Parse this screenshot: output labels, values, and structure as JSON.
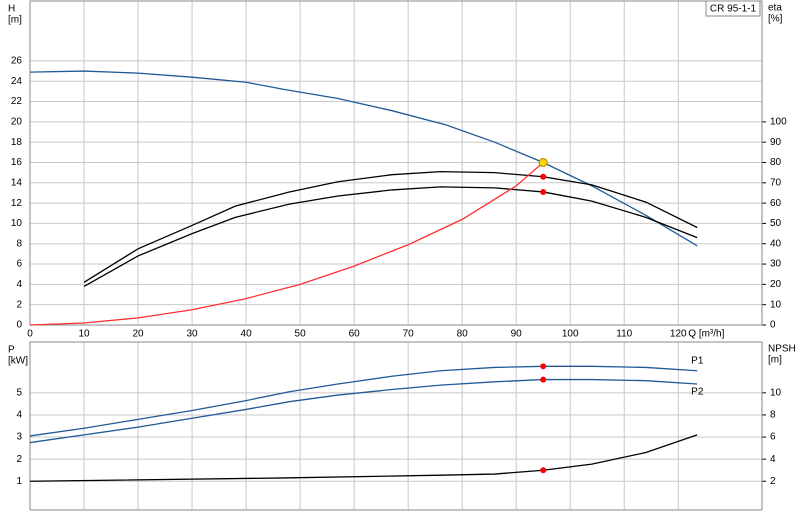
{
  "model": "CR 95-1-1",
  "chart_data": [
    {
      "type": "line",
      "xlabel": "Q [m³/h]",
      "ylabel": "H",
      "yunit": "[m]",
      "y2label": "eta",
      "y2unit": "[%]",
      "xlim": [
        0,
        135.5
      ],
      "ylim": [
        0,
        31.9
      ],
      "y2lim": [
        0,
        159.5
      ],
      "xticks": [
        0,
        10,
        20,
        30,
        40,
        50,
        60,
        70,
        80,
        90,
        100,
        110,
        120
      ],
      "yticks": [
        0,
        2,
        4,
        6,
        8,
        10,
        12,
        14,
        16,
        18,
        20,
        22,
        24,
        26
      ],
      "y2ticks": [
        0,
        10,
        20,
        30,
        40,
        50,
        60,
        70,
        80,
        90,
        100
      ],
      "grid": true,
      "series": [
        {
          "color": "#1f5a96",
          "axis": "y",
          "x": [
            0,
            10,
            20,
            30,
            40,
            47,
            57,
            67,
            77,
            86,
            95,
            104,
            114,
            123.5
          ],
          "values": [
            24.9,
            25.0,
            24.8,
            24.4,
            23.9,
            23.2,
            22.3,
            21.1,
            19.7,
            18.0,
            16.0,
            13.7,
            10.8,
            7.8
          ]
        },
        {
          "color": "#000000",
          "axis": "y2",
          "x": [
            10,
            20,
            30,
            38,
            48,
            57,
            67,
            76,
            86,
            95,
            104,
            114,
            123.5
          ],
          "values": [
            21,
            37.5,
            49,
            58.5,
            65.5,
            70.5,
            74,
            75.5,
            75,
            73,
            69,
            60.5,
            48
          ]
        },
        {
          "color": "#000000",
          "axis": "y2",
          "x": [
            10,
            20,
            30,
            38,
            48,
            57,
            67,
            76,
            86,
            95,
            104,
            114,
            123.5
          ],
          "values": [
            19,
            34,
            45,
            53,
            59.5,
            63.5,
            66.5,
            68,
            67.5,
            65.5,
            61,
            53,
            43
          ]
        },
        {
          "color": "#ff3030",
          "axis": "y",
          "x": [
            0,
            10,
            20,
            30,
            40,
            50,
            60,
            70,
            80,
            90,
            95
          ],
          "values": [
            0,
            0.2,
            0.7,
            1.5,
            2.6,
            4.0,
            5.8,
            7.9,
            10.4,
            13.7,
            16.0
          ]
        }
      ],
      "points": [
        {
          "x": 95,
          "value": 16,
          "axis": "y",
          "color": "#ffd700"
        },
        {
          "x": 95,
          "value": 73,
          "axis": "y2",
          "color": "#ff0000"
        },
        {
          "x": 95,
          "value": 65.5,
          "axis": "y2",
          "color": "#ff0000"
        }
      ]
    },
    {
      "type": "line",
      "ylabel": "P",
      "yunit": "[kW]",
      "y2label": "NPSH",
      "y2unit": "[m]",
      "xlim": [
        0,
        135.5
      ],
      "ylim": [
        -0.3,
        7.3
      ],
      "y2lim": [
        -0.6,
        14.6
      ],
      "yticks": [
        1,
        2,
        3,
        4,
        5
      ],
      "y2ticks": [
        2,
        4,
        6,
        8,
        10
      ],
      "grid": true,
      "series": [
        {
          "name": "P1",
          "color": "#1f5a96",
          "axis": "y",
          "x": [
            0,
            10,
            20,
            30,
            40,
            48,
            57,
            67,
            76,
            86,
            95,
            104,
            114,
            123.5
          ],
          "values": [
            3.05,
            3.4,
            3.8,
            4.2,
            4.65,
            5.05,
            5.4,
            5.75,
            6.0,
            6.15,
            6.2,
            6.2,
            6.15,
            6.0
          ]
        },
        {
          "name": "P2",
          "color": "#1f5a96",
          "axis": "y",
          "x": [
            0,
            10,
            20,
            30,
            40,
            48,
            57,
            67,
            76,
            86,
            95,
            104,
            114,
            123.5
          ],
          "values": [
            2.75,
            3.1,
            3.45,
            3.85,
            4.25,
            4.6,
            4.9,
            5.15,
            5.35,
            5.5,
            5.6,
            5.6,
            5.55,
            5.4
          ]
        },
        {
          "color": "#000000",
          "axis": "y2",
          "x": [
            0,
            47,
            76,
            86,
            95,
            104,
            114,
            123.5
          ],
          "values": [
            2.0,
            2.3,
            2.55,
            2.65,
            3.0,
            3.55,
            4.6,
            6.2
          ]
        }
      ],
      "points": [
        {
          "x": 95,
          "value": 6.2,
          "axis": "y",
          "color": "#ff0000"
        },
        {
          "x": 95,
          "value": 5.6,
          "axis": "y",
          "color": "#ff0000"
        },
        {
          "x": 95,
          "value": 3.0,
          "axis": "y2",
          "color": "#ff0000"
        }
      ]
    }
  ]
}
